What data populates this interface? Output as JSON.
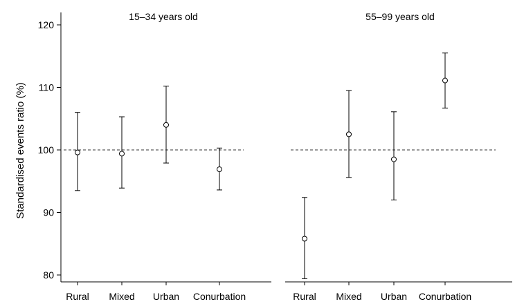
{
  "chart_data": {
    "type": "scatter",
    "ylabel": "Standardised events ratio (%)",
    "ylim": [
      78,
      122
    ],
    "yticks": [
      80,
      90,
      100,
      110,
      120
    ],
    "reference_line": 100,
    "panels": [
      {
        "title": "15–34 years old",
        "categories": [
          "Rural",
          "Mixed",
          "Urban",
          "Conurbation"
        ],
        "values": [
          99.6,
          99.4,
          104.0,
          96.9
        ],
        "lower": [
          93.5,
          93.9,
          97.9,
          93.6
        ],
        "upper": [
          106.0,
          105.3,
          110.2,
          100.3
        ]
      },
      {
        "title": "55–99 years old",
        "categories": [
          "Rural",
          "Mixed",
          "Urban",
          "Conurbation"
        ],
        "values": [
          85.8,
          102.5,
          98.5,
          111.1
        ],
        "lower": [
          79.4,
          95.6,
          92.0,
          106.7
        ],
        "upper": [
          92.4,
          109.5,
          106.1,
          115.5
        ]
      }
    ]
  }
}
